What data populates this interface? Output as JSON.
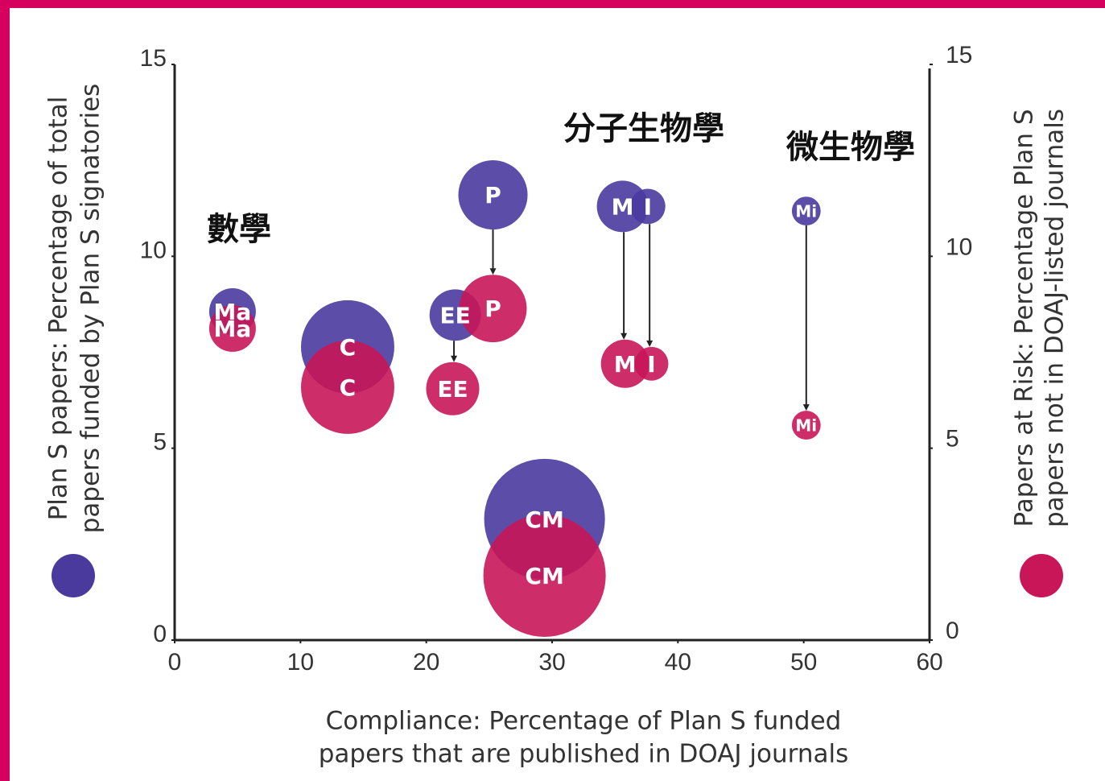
{
  "chart_data": {
    "type": "bubble",
    "xlabel": [
      "Compliance: Percentage of Plan S funded",
      "papers that are published in DOAJ journals"
    ],
    "ylabel": [
      "Plan S  papers: Percentage of total",
      "papers funded by Plan S signatories"
    ],
    "y2label": [
      "Papers at Risk: Percentage Plan S",
      "papers not in DOAJ-listed journals"
    ],
    "annotations": [
      "數學",
      "分子生物學",
      "微生物學"
    ],
    "xlim": [
      0,
      60
    ],
    "xticks": [
      0,
      10,
      20,
      30,
      40,
      50,
      60
    ],
    "ylim": [
      0,
      15
    ],
    "yticks": [
      0,
      5,
      10,
      15
    ],
    "y2lim": [
      0,
      15
    ],
    "y2ticks": [
      0,
      5,
      10,
      15
    ],
    "series": [
      {
        "color": "#4a3a9e",
        "axis": "y",
        "labels": [
          "Ma",
          "C",
          "EE",
          "P",
          "CM",
          "M",
          "I",
          "Mi"
        ],
        "x": [
          4.6,
          13.75,
          22.3,
          25.3,
          29.4,
          35.6,
          37.6,
          50.2
        ],
        "values": [
          8.56,
          7.64,
          8.47,
          11.6,
          3.15,
          11.3,
          11.3,
          11.18
        ],
        "sizes": [
          8.4,
          33.6,
          10.2,
          18.5,
          56.3,
          10.2,
          4.8,
          3.2
        ]
      },
      {
        "color": "#c81658",
        "axis": "y2",
        "labels": [
          "Ma",
          "C",
          "EE",
          "P",
          "CM",
          "M",
          "I",
          "Mi"
        ],
        "x": [
          4.6,
          13.75,
          22.1,
          25.3,
          29.4,
          35.8,
          37.9,
          50.2
        ],
        "values": [
          8.12,
          6.59,
          6.55,
          8.64,
          1.68,
          7.2,
          7.2,
          5.6
        ],
        "sizes": [
          8.4,
          33.6,
          10.9,
          17.6,
          57.8,
          9.0,
          4.4,
          3.2
        ]
      }
    ]
  }
}
